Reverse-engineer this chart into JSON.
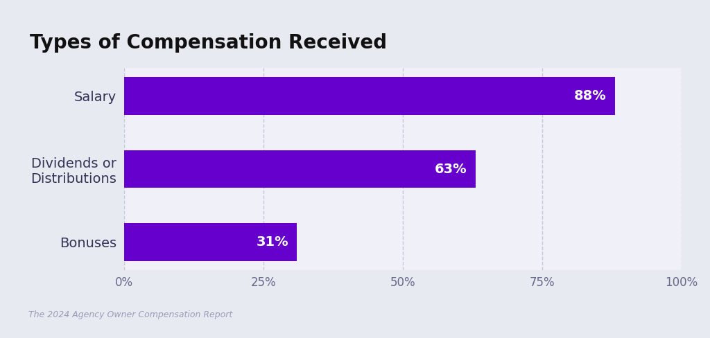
{
  "title": "Types of Compensation Received",
  "categories": [
    "Bonuses",
    "Dividends or\nDistributions",
    "Salary"
  ],
  "values": [
    31,
    63,
    88
  ],
  "bar_color": "#6600CC",
  "background_color": "#E8EAF2",
  "card_color": "#F0F1F8",
  "text_color_bar": "#FFFFFF",
  "title_color": "#111111",
  "grid_color": "#C5C7D4",
  "xlabel_ticks": [
    "0%",
    "25%",
    "50%",
    "75%",
    "100%"
  ],
  "xlabel_vals": [
    0,
    25,
    50,
    75,
    100
  ],
  "xlim": [
    0,
    100
  ],
  "footer_text": "The 2024 Agency Owner Compensation Report",
  "footer_color": "#9A9CB8",
  "bar_height": 0.52,
  "label_fontsize": 14,
  "value_fontsize": 14,
  "title_fontsize": 20,
  "tick_fontsize": 12
}
